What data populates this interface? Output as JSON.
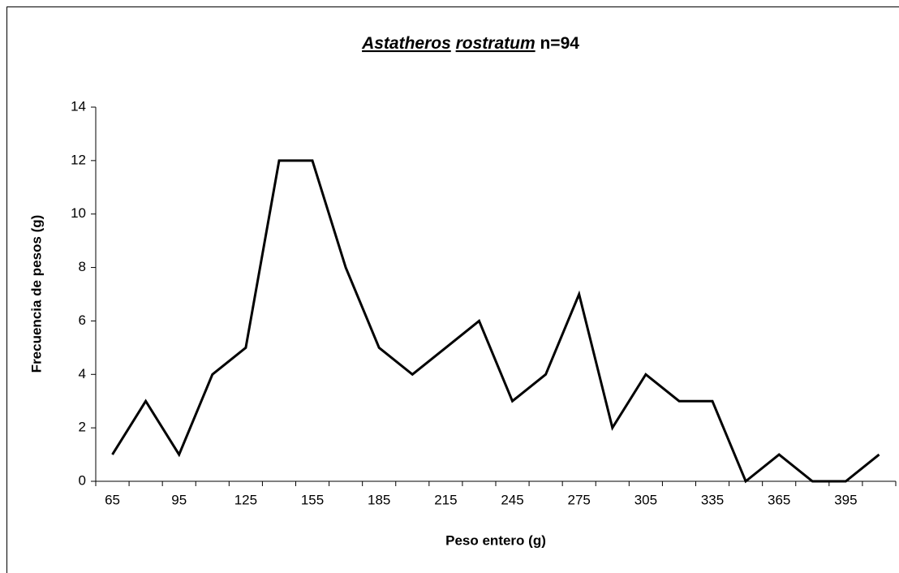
{
  "chart_data": {
    "type": "line",
    "title": {
      "genus": "Astatheros",
      "species": "rostratum",
      "count": "n=94"
    },
    "x_label": "Peso entero (g)",
    "y_label": "Frecuencia de pesos (g)",
    "categories": [
      65,
      null,
      95,
      null,
      125,
      null,
      155,
      null,
      185,
      null,
      215,
      null,
      245,
      null,
      275,
      null,
      305,
      null,
      335,
      null,
      365,
      null,
      395,
      null
    ],
    "values": [
      1,
      3,
      1,
      4,
      5,
      12,
      12,
      8,
      5,
      4,
      5,
      6,
      3,
      4,
      7,
      2,
      4,
      3,
      3,
      0,
      1,
      0,
      0,
      1
    ],
    "color": "#000000",
    "ylim": [
      0,
      14
    ],
    "yticks": [
      0,
      2,
      4,
      6,
      8,
      10,
      12,
      14
    ],
    "grid": false
  }
}
